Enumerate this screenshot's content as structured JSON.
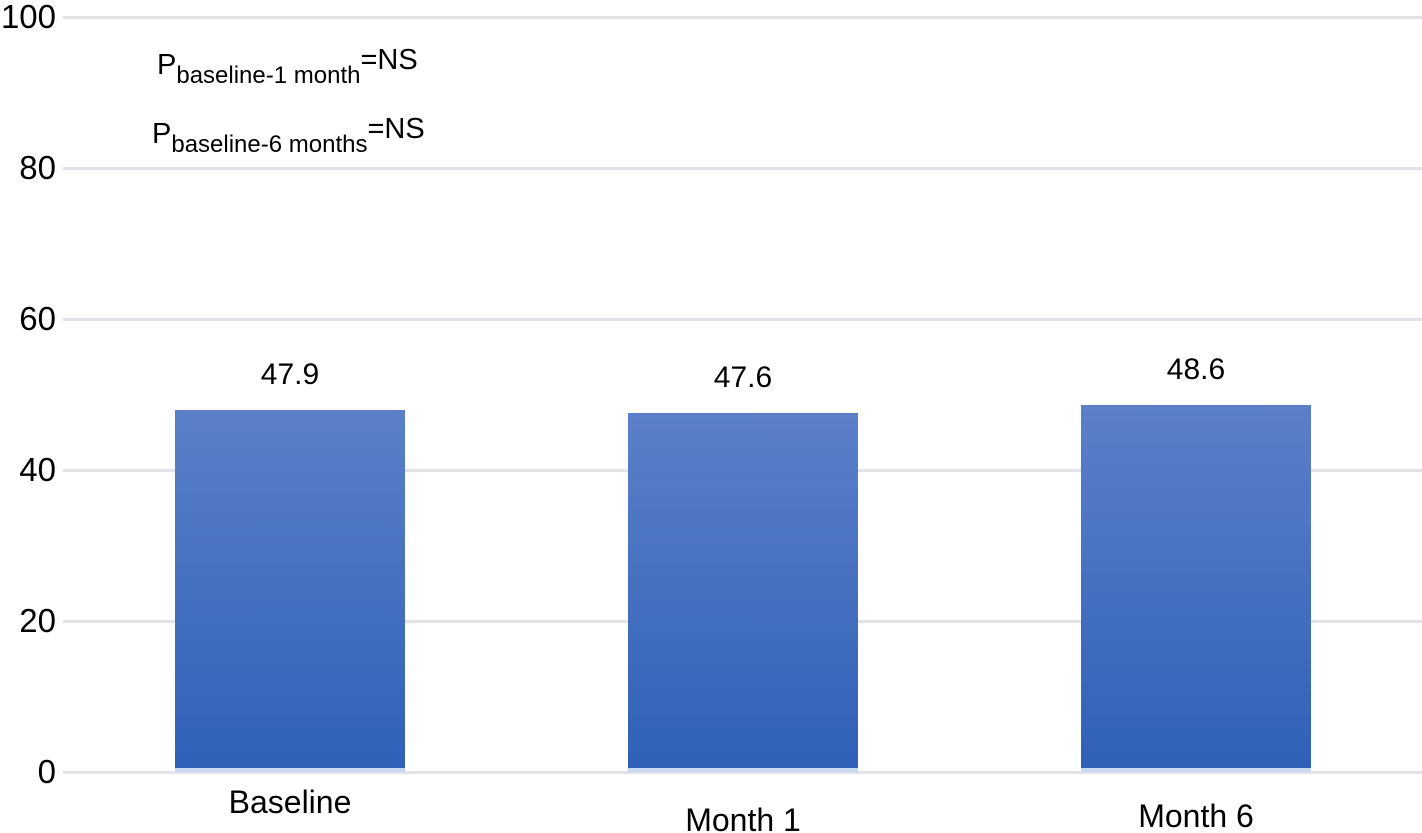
{
  "chart_data": {
    "type": "bar",
    "categories": [
      "Baseline",
      "Month 1",
      "Month 6"
    ],
    "values": [
      47.9,
      47.6,
      48.6
    ],
    "data_labels": [
      "47.9",
      "47.6",
      "48.6"
    ],
    "title": "",
    "xlabel": "",
    "ylabel": "",
    "ylim": [
      0,
      100
    ],
    "yticks": [
      0,
      20,
      40,
      60,
      80,
      100
    ],
    "grid": "horizontal",
    "legend": "none",
    "annotations": [
      {
        "base": "P",
        "subscript": "baseline-1 month",
        "suffix": "=NS"
      },
      {
        "base": "P",
        "subscript": "baseline-6 months",
        "suffix": "=NS"
      }
    ],
    "colors": {
      "bar_top": "#5b80c8",
      "bar_bottom": "#3060b8",
      "bar_base_edge": "#c8d8ee",
      "gridline": "#e1e3e9",
      "text": "#000000"
    }
  }
}
